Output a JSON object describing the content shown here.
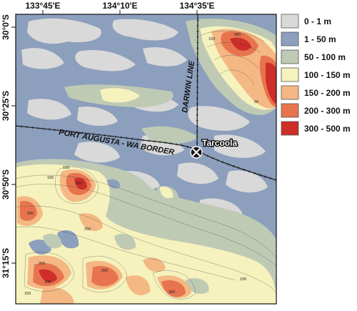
{
  "map": {
    "x_ticks": [
      "133°45'E",
      "134°10'E",
      "134°35'E"
    ],
    "y_ticks": [
      "30°0'S",
      "30°25'S",
      "30°50'S",
      "31°15'S"
    ],
    "rail_labels": {
      "port_augusta": "PORT AUGUSTA - WA BORDER",
      "darwin": "DARWIN LINE"
    },
    "town": "Tarcoola",
    "contour_labels": [
      "100",
      "150",
      "200",
      "300",
      "250",
      "50",
      "400",
      "150",
      "200",
      "300",
      "100",
      "200",
      "300",
      "150"
    ]
  },
  "legend": {
    "items": [
      {
        "label": "0 - 1 m",
        "color": "#d9d9d9"
      },
      {
        "label": "1 - 50 m",
        "color": "#8c9fbd"
      },
      {
        "label": "50 - 100 m",
        "color": "#bfcab4"
      },
      {
        "label": "100 - 150 m",
        "color": "#f6f2bd"
      },
      {
        "label": "150 - 200 m",
        "color": "#f4b884"
      },
      {
        "label": "200 - 300 m",
        "color": "#e7744e"
      },
      {
        "label": "300 - 500 m",
        "color": "#cd2e28"
      }
    ]
  }
}
